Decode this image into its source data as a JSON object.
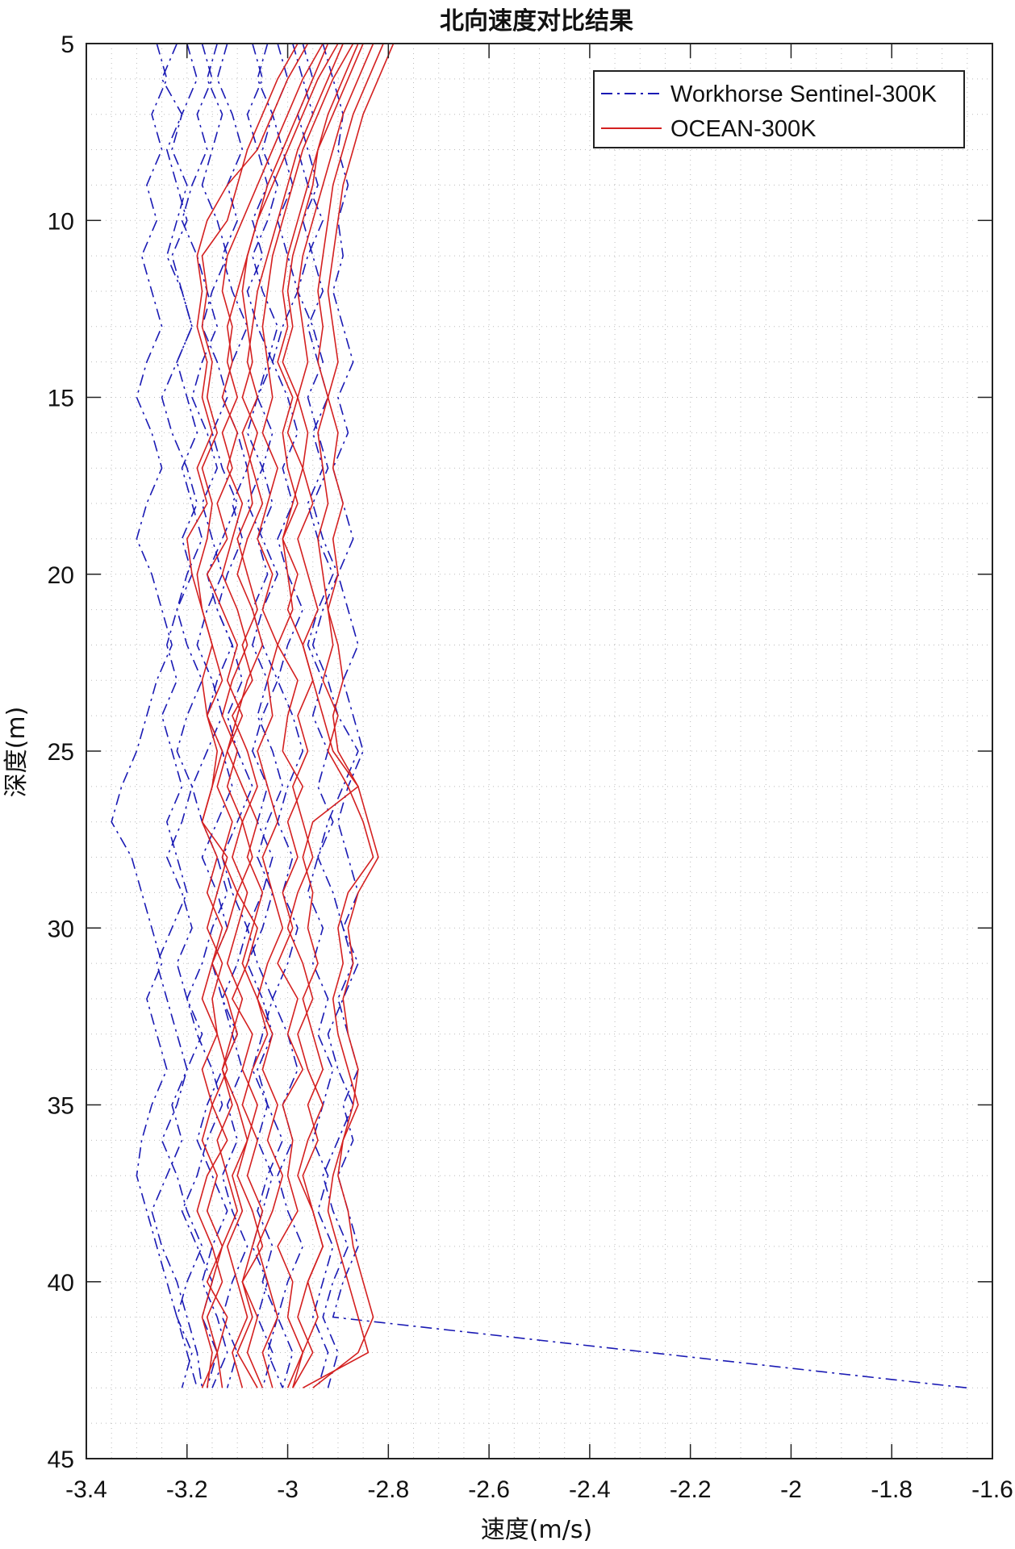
{
  "chart_data": {
    "type": "line",
    "title": "北向速度对比结果",
    "xlabel": "速度(m/s)",
    "ylabel": "深度(m)",
    "xlim": [
      -3.4,
      -1.6
    ],
    "ylim": [
      5,
      45
    ],
    "y_reversed": true,
    "grid": "dotted major and minor",
    "legend_position": "top-right",
    "xticks": [
      "-3.4",
      "-3.2",
      "-3",
      "-2.8",
      "-2.6",
      "-2.4",
      "-2.2",
      "-2",
      "-1.8",
      "-1.6"
    ],
    "yticks": [
      "5",
      "10",
      "15",
      "20",
      "25",
      "30",
      "35",
      "40",
      "45"
    ],
    "depth": [
      5,
      6,
      7,
      8,
      9,
      10,
      11,
      12,
      13,
      14,
      15,
      16,
      17,
      18,
      19,
      20,
      21,
      22,
      23,
      24,
      25,
      26,
      27,
      28,
      29,
      30,
      31,
      32,
      33,
      34,
      35,
      36,
      37,
      38,
      39,
      40,
      41,
      42,
      43
    ],
    "groups": [
      {
        "name": "Workhorse Sentinel-300K",
        "color": "#1a1ab4",
        "style": "dashdot",
        "profiles": [
          [
            -3.26,
            -3.24,
            -3.27,
            -3.25,
            -3.28,
            -3.26,
            -3.29,
            -3.27,
            -3.25,
            -3.28,
            -3.3,
            -3.27,
            -3.25,
            -3.28,
            -3.3,
            -3.27,
            -3.25,
            -3.23,
            -3.26,
            -3.28,
            -3.3,
            -3.33,
            -3.35,
            -3.31,
            -3.29,
            -3.27,
            -3.25,
            -3.28,
            -3.26,
            -3.24,
            -3.27,
            -3.29,
            -3.3,
            -3.28,
            -3.26,
            -3.24,
            -3.22,
            -3.2,
            -3.18
          ],
          [
            -3.22,
            -3.25,
            -3.21,
            -3.24,
            -3.22,
            -3.2,
            -3.23,
            -3.21,
            -3.19,
            -3.22,
            -3.2,
            -3.18,
            -3.21,
            -3.19,
            -3.17,
            -3.2,
            -3.22,
            -3.24,
            -3.22,
            -3.25,
            -3.23,
            -3.21,
            -3.24,
            -3.22,
            -3.2,
            -3.23,
            -3.26,
            -3.24,
            -3.22,
            -3.2,
            -3.23,
            -3.21,
            -3.24,
            -3.27,
            -3.25,
            -3.22,
            -3.2,
            -3.18,
            -3.17
          ],
          [
            -3.17,
            -3.15,
            -3.18,
            -3.16,
            -3.19,
            -3.21,
            -3.18,
            -3.16,
            -3.14,
            -3.17,
            -3.19,
            -3.16,
            -3.14,
            -3.17,
            -3.15,
            -3.13,
            -3.16,
            -3.18,
            -3.15,
            -3.13,
            -3.16,
            -3.19,
            -3.17,
            -3.14,
            -3.12,
            -3.15,
            -3.17,
            -3.2,
            -3.18,
            -3.15,
            -3.13,
            -3.16,
            -3.18,
            -3.21,
            -3.18,
            -3.15,
            -3.17,
            -3.14,
            -3.16
          ],
          [
            -3.12,
            -3.14,
            -3.11,
            -3.09,
            -3.12,
            -3.1,
            -3.13,
            -3.11,
            -3.08,
            -3.11,
            -3.13,
            -3.1,
            -3.08,
            -3.11,
            -3.09,
            -3.12,
            -3.14,
            -3.11,
            -3.09,
            -3.12,
            -3.1,
            -3.07,
            -3.1,
            -3.13,
            -3.11,
            -3.08,
            -3.1,
            -3.13,
            -3.11,
            -3.09,
            -3.12,
            -3.1,
            -3.13,
            -3.11,
            -3.08,
            -3.11,
            -3.13,
            -3.1,
            -3.12
          ],
          [
            -3.07,
            -3.05,
            -3.08,
            -3.06,
            -3.04,
            -3.07,
            -3.05,
            -3.08,
            -3.06,
            -3.03,
            -3.06,
            -3.08,
            -3.05,
            -3.03,
            -3.06,
            -3.04,
            -3.07,
            -3.05,
            -3.02,
            -3.05,
            -3.07,
            -3.04,
            -3.06,
            -3.03,
            -3.05,
            -3.08,
            -3.06,
            -3.03,
            -3.05,
            -3.07,
            -3.04,
            -3.06,
            -3.03,
            -3.05,
            -3.07,
            -3.04,
            -3.06,
            -3.03,
            -3.05
          ],
          [
            -3.02,
            -3.0,
            -3.03,
            -3.01,
            -2.99,
            -3.02,
            -3.0,
            -2.98,
            -3.01,
            -3.03,
            -3.0,
            -2.98,
            -3.01,
            -2.99,
            -3.02,
            -3.0,
            -2.97,
            -3.0,
            -3.02,
            -2.99,
            -2.97,
            -3.0,
            -3.02,
            -2.99,
            -3.01,
            -2.98,
            -3.0,
            -3.03,
            -3.0,
            -2.98,
            -3.01,
            -2.99,
            -3.02,
            -3.0,
            -2.97,
            -3.0,
            -3.02,
            -2.99,
            -3.01
          ],
          [
            -2.97,
            -2.95,
            -2.98,
            -2.96,
            -2.94,
            -2.97,
            -2.95,
            -2.93,
            -2.96,
            -2.94,
            -2.92,
            -2.95,
            -2.93,
            -2.96,
            -2.94,
            -2.91,
            -2.94,
            -2.96,
            -2.93,
            -2.95,
            -2.92,
            -2.94,
            -2.91,
            -2.94,
            -2.96,
            -2.93,
            -2.95,
            -2.92,
            -2.94,
            -2.91,
            -2.93,
            -2.95,
            -2.92,
            -2.94,
            -2.91,
            -2.93,
            -2.95,
            -2.92,
            -2.94
          ],
          [
            -2.93,
            -2.91,
            -2.89,
            -2.9,
            -2.88,
            -2.9,
            -2.89,
            -2.91,
            -2.89,
            -2.87,
            -2.9,
            -2.88,
            -2.91,
            -2.89,
            -2.87,
            -2.9,
            -2.88,
            -2.86,
            -2.89,
            -2.87,
            -2.85,
            -2.88,
            -2.9,
            -2.88,
            -2.86,
            -2.89,
            -2.87,
            -2.9,
            -2.88,
            -2.86,
            -2.89,
            -2.87,
            -2.9,
            -2.88,
            -2.86,
            -2.89,
            -2.91,
            -2.28,
            -1.65
          ],
          [
            -3.2,
            -3.18,
            -3.21,
            -3.23,
            -3.2,
            -3.22,
            -3.24,
            -3.21,
            -3.19,
            -3.22,
            -3.25,
            -3.23,
            -3.2,
            -3.18,
            -3.21,
            -3.19,
            -3.22,
            -3.2,
            -3.17,
            -3.2,
            -3.22,
            -3.19,
            -3.21,
            -3.24,
            -3.21,
            -3.19,
            -3.22,
            -3.2,
            -3.17,
            -3.2,
            -3.22,
            -3.25,
            -3.22,
            -3.2,
            -3.17,
            -3.2,
            -3.22,
            -3.19,
            -3.21
          ],
          [
            -3.04,
            -3.06,
            -3.03,
            -3.05,
            -3.02,
            -3.04,
            -3.07,
            -3.05,
            -3.02,
            -3.04,
            -3.06,
            -3.03,
            -3.05,
            -3.08,
            -3.05,
            -3.02,
            -3.05,
            -3.07,
            -3.04,
            -3.06,
            -3.03,
            -3.01,
            -3.04,
            -3.06,
            -3.03,
            -3.05,
            -3.08,
            -3.05,
            -3.03,
            -3.06,
            -3.04,
            -3.01,
            -3.04,
            -3.06,
            -3.03,
            -3.05,
            -3.02,
            -3.04,
            -3.01
          ],
          [
            -2.99,
            -2.97,
            -2.95,
            -2.98,
            -2.96,
            -2.93,
            -2.96,
            -2.98,
            -2.95,
            -2.93,
            -2.96,
            -2.94,
            -2.92,
            -2.95,
            -2.93,
            -2.9,
            -2.93,
            -2.95,
            -2.92,
            -2.9,
            -2.86,
            -2.89,
            -2.92,
            -2.94,
            -2.91,
            -2.89,
            -2.86,
            -2.89,
            -2.92,
            -2.9,
            -2.87,
            -2.9,
            -2.93,
            -2.91,
            -2.88,
            -2.91,
            -2.93,
            -2.9,
            -2.92
          ],
          [
            -3.14,
            -3.16,
            -3.13,
            -3.15,
            -3.17,
            -3.14,
            -3.12,
            -3.15,
            -3.17,
            -3.14,
            -3.12,
            -3.15,
            -3.13,
            -3.1,
            -3.13,
            -3.16,
            -3.14,
            -3.11,
            -3.14,
            -3.16,
            -3.13,
            -3.11,
            -3.14,
            -3.17,
            -3.14,
            -3.12,
            -3.15,
            -3.13,
            -3.1,
            -3.13,
            -3.16,
            -3.18,
            -3.15,
            -3.12,
            -3.15,
            -3.17,
            -3.14,
            -3.12,
            -3.15
          ]
        ]
      },
      {
        "name": "OCEAN-300K",
        "color": "#d42020",
        "style": "solid",
        "profiles": [
          [
            -2.98,
            -3.02,
            -3.05,
            -3.08,
            -3.1,
            -3.12,
            -3.17,
            -3.16,
            -3.17,
            -3.15,
            -3.16,
            -3.14,
            -3.17,
            -3.15,
            -3.16,
            -3.18,
            -3.17,
            -3.15,
            -3.13,
            -3.16,
            -3.14,
            -3.15,
            -3.17,
            -3.12,
            -3.14,
            -3.16,
            -3.13,
            -3.15,
            -3.14,
            -3.17,
            -3.15,
            -3.12,
            -3.16,
            -3.18,
            -3.15,
            -3.13,
            -3.16,
            -3.14,
            -3.17
          ],
          [
            -2.93,
            -2.97,
            -3.0,
            -3.03,
            -3.06,
            -3.09,
            -3.12,
            -3.13,
            -3.11,
            -3.12,
            -3.1,
            -3.13,
            -3.11,
            -3.14,
            -3.12,
            -3.16,
            -3.13,
            -3.1,
            -3.12,
            -3.09,
            -3.12,
            -3.14,
            -3.11,
            -3.13,
            -3.1,
            -3.12,
            -3.15,
            -3.12,
            -3.1,
            -3.13,
            -3.11,
            -3.14,
            -3.12,
            -3.1,
            -3.13,
            -3.16,
            -3.12,
            -3.14,
            -3.13
          ],
          [
            -2.9,
            -2.94,
            -2.97,
            -3.0,
            -3.03,
            -3.06,
            -3.08,
            -3.09,
            -3.08,
            -3.07,
            -3.09,
            -3.06,
            -3.08,
            -3.07,
            -3.1,
            -3.08,
            -3.06,
            -3.09,
            -3.07,
            -3.11,
            -3.08,
            -3.06,
            -3.09,
            -3.07,
            -3.1,
            -3.06,
            -3.08,
            -3.11,
            -3.07,
            -3.09,
            -3.06,
            -3.08,
            -3.1,
            -3.07,
            -3.05,
            -3.09,
            -3.07,
            -3.1,
            -3.06
          ],
          [
            -2.87,
            -2.91,
            -2.94,
            -2.97,
            -2.99,
            -3.01,
            -3.03,
            -3.04,
            -3.05,
            -3.04,
            -3.03,
            -3.05,
            -3.02,
            -3.04,
            -3.06,
            -3.03,
            -3.05,
            -3.02,
            -3.04,
            -3.03,
            -3.06,
            -3.04,
            -3.02,
            -3.05,
            -3.03,
            -3.01,
            -3.04,
            -3.06,
            -3.03,
            -3.05,
            -3.02,
            -3.04,
            -3.01,
            -3.03,
            -3.06,
            -3.04,
            -3.02,
            -3.05,
            -3.03
          ],
          [
            -2.85,
            -2.88,
            -2.91,
            -2.94,
            -2.96,
            -2.98,
            -3.0,
            -3.01,
            -3.0,
            -3.02,
            -2.99,
            -3.01,
            -3.0,
            -2.98,
            -3.01,
            -3.0,
            -2.99,
            -3.02,
            -2.98,
            -3.0,
            -3.01,
            -2.97,
            -3.0,
            -2.98,
            -3.01,
            -2.99,
            -3.02,
            -2.98,
            -3.0,
            -2.97,
            -3.01,
            -2.99,
            -3.0,
            -2.98,
            -3.02,
            -2.99,
            -3.0,
            -2.97,
            -3.0
          ],
          [
            -2.83,
            -2.86,
            -2.89,
            -2.91,
            -2.93,
            -2.95,
            -2.97,
            -2.98,
            -2.97,
            -2.96,
            -2.98,
            -2.96,
            -2.97,
            -2.95,
            -2.98,
            -2.96,
            -2.94,
            -2.97,
            -2.95,
            -2.93,
            -2.91,
            -2.86,
            -2.95,
            -2.97,
            -2.95,
            -2.96,
            -2.94,
            -2.97,
            -2.95,
            -2.93,
            -2.96,
            -2.94,
            -2.97,
            -2.95,
            -2.93,
            -2.96,
            -2.94,
            -2.97,
            -2.99
          ],
          [
            -2.81,
            -2.84,
            -2.87,
            -2.89,
            -2.91,
            -2.92,
            -2.93,
            -2.94,
            -2.93,
            -2.94,
            -2.92,
            -2.94,
            -2.93,
            -2.92,
            -2.94,
            -2.93,
            -2.92,
            -2.91,
            -2.93,
            -2.9,
            -2.92,
            -2.88,
            -2.85,
            -2.83,
            -2.88,
            -2.9,
            -2.89,
            -2.91,
            -2.9,
            -2.88,
            -2.86,
            -2.89,
            -2.91,
            -2.92,
            -2.9,
            -2.88,
            -2.86,
            -2.84,
            -2.97
          ],
          [
            -2.79,
            -2.82,
            -2.85,
            -2.87,
            -2.89,
            -2.9,
            -2.91,
            -2.92,
            -2.91,
            -2.9,
            -2.92,
            -2.9,
            -2.91,
            -2.89,
            -2.91,
            -2.9,
            -2.92,
            -2.9,
            -2.89,
            -2.91,
            -2.9,
            -2.86,
            -2.84,
            -2.82,
            -2.86,
            -2.88,
            -2.87,
            -2.89,
            -2.88,
            -2.86,
            -2.87,
            -2.89,
            -2.9,
            -2.88,
            -2.87,
            -2.85,
            -2.83,
            -2.86,
            -2.95
          ],
          [
            -2.96,
            -3.0,
            -3.03,
            -3.06,
            -3.12,
            -3.16,
            -3.18,
            -3.17,
            -3.18,
            -3.16,
            -3.17,
            -3.15,
            -3.18,
            -3.16,
            -3.2,
            -3.19,
            -3.17,
            -3.15,
            -3.17,
            -3.16,
            -3.13,
            -3.15,
            -3.17,
            -3.14,
            -3.16,
            -3.13,
            -3.15,
            -3.17,
            -3.14,
            -3.12,
            -3.15,
            -3.17,
            -3.14,
            -3.16,
            -3.13,
            -3.15,
            -3.17,
            -3.15,
            -3.16
          ],
          [
            -2.89,
            -2.92,
            -2.95,
            -2.98,
            -3.0,
            -3.02,
            -3.04,
            -3.06,
            -3.07,
            -3.08,
            -3.06,
            -3.09,
            -3.07,
            -3.05,
            -3.08,
            -3.1,
            -3.07,
            -3.05,
            -3.08,
            -3.1,
            -3.12,
            -3.09,
            -3.06,
            -3.08,
            -3.05,
            -3.07,
            -3.09,
            -3.06,
            -3.04,
            -3.07,
            -3.09,
            -3.06,
            -3.08,
            -3.05,
            -3.07,
            -3.09,
            -3.06,
            -3.08,
            -3.05
          ],
          [
            -2.86,
            -2.89,
            -2.92,
            -2.94,
            -2.95,
            -2.97,
            -2.99,
            -3.0,
            -2.99,
            -3.01,
            -2.98,
            -3.0,
            -2.97,
            -2.99,
            -3.01,
            -2.98,
            -3.0,
            -2.97,
            -2.95,
            -2.98,
            -2.96,
            -2.99,
            -2.97,
            -2.95,
            -2.98,
            -3.0,
            -2.97,
            -2.95,
            -2.98,
            -2.96,
            -2.93,
            -2.96,
            -2.98,
            -2.95,
            -2.93,
            -2.96,
            -2.98,
            -2.95,
            -2.99
          ],
          [
            -2.92,
            -2.95,
            -2.98,
            -3.01,
            -3.04,
            -3.06,
            -3.08,
            -3.1,
            -3.12,
            -3.11,
            -3.13,
            -3.1,
            -3.12,
            -3.09,
            -3.11,
            -3.13,
            -3.1,
            -3.08,
            -3.11,
            -3.13,
            -3.1,
            -3.12,
            -3.09,
            -3.11,
            -3.08,
            -3.1,
            -3.12,
            -3.09,
            -3.11,
            -3.13,
            -3.1,
            -3.08,
            -3.11,
            -3.09,
            -3.12,
            -3.1,
            -3.08,
            -3.11,
            -3.09
          ]
        ]
      }
    ]
  }
}
